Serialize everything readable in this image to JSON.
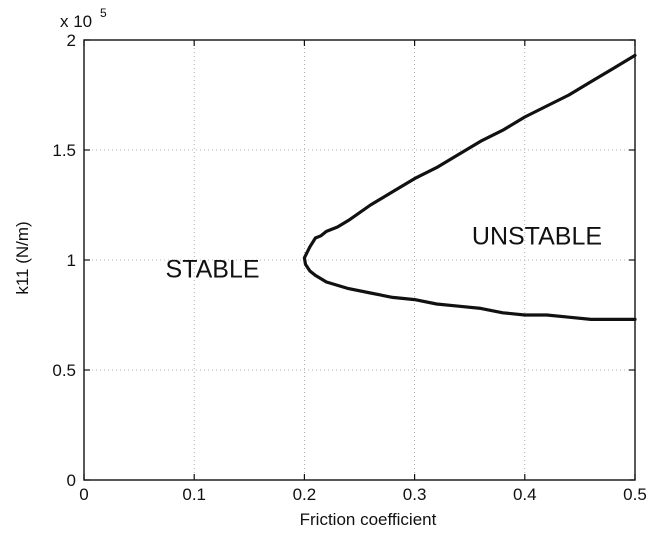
{
  "chart_data": {
    "type": "line",
    "title": "",
    "xlabel": "Friction coefficient",
    "ylabel": "k11 (N/m)",
    "y_scale_multiplier_label": "x 10",
    "y_scale_multiplier_exponent": "5",
    "xlim": [
      0,
      0.5
    ],
    "ylim": [
      0,
      200000
    ],
    "x_ticks": [
      0,
      0.1,
      0.2,
      0.3,
      0.4,
      0.5
    ],
    "x_tick_labels": [
      "0",
      "0.1",
      "0.2",
      "0.3",
      "0.4",
      "0.5"
    ],
    "y_ticks": [
      0,
      50000,
      100000,
      150000,
      200000
    ],
    "y_tick_labels": [
      "0",
      "0.5",
      "1",
      "1.5",
      "2"
    ],
    "grid": true,
    "annotations": [
      {
        "text": "STABLE",
        "x": 0.074,
        "y": 92000
      },
      {
        "text": "UNSTABLE",
        "x": 0.352,
        "y": 107000
      }
    ],
    "series": [
      {
        "color": "#111111",
        "x": [
          0.5,
          0.48,
          0.46,
          0.44,
          0.42,
          0.4,
          0.38,
          0.36,
          0.34,
          0.32,
          0.3,
          0.28,
          0.26,
          0.24,
          0.23,
          0.22,
          0.215,
          0.21,
          0.205,
          0.203,
          0.2,
          0.201,
          0.205,
          0.21,
          0.22,
          0.24,
          0.26,
          0.28,
          0.3,
          0.32,
          0.34,
          0.36,
          0.38,
          0.4,
          0.42,
          0.44,
          0.46,
          0.48,
          0.5
        ],
        "y": [
          193000,
          187000,
          181000,
          175000,
          170000,
          165000,
          159000,
          154000,
          148000,
          142000,
          137000,
          131000,
          125000,
          118000,
          115000,
          113000,
          111000,
          110000,
          106000,
          104000,
          101000,
          98000,
          95000,
          93000,
          90000,
          87000,
          85000,
          83000,
          82000,
          80000,
          79000,
          78000,
          76000,
          75000,
          75000,
          74000,
          73000,
          73000,
          73000
        ]
      }
    ]
  }
}
